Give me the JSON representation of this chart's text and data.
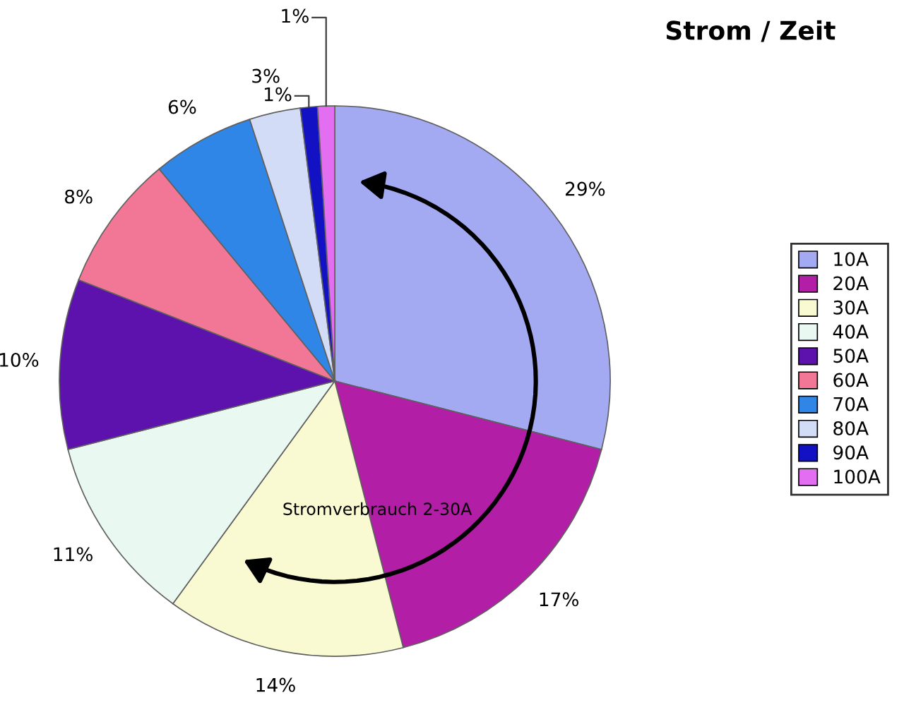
{
  "chart_data": {
    "type": "pie",
    "title": "Strom / Zeit",
    "categories": [
      "10A",
      "20A",
      "30A",
      "40A",
      "50A",
      "60A",
      "70A",
      "80A",
      "90A",
      "100A"
    ],
    "values": [
      29,
      17,
      14,
      11,
      10,
      8,
      6,
      3,
      1,
      1
    ],
    "colors": [
      "#a3aaf2",
      "#b21ea5",
      "#fafad2",
      "#e9f8f1",
      "#5e12ad",
      "#f27796",
      "#2f86e6",
      "#d3dcf7",
      "#1212c4",
      "#e36ef2"
    ],
    "value_labels": [
      "29%",
      "17%",
      "14%",
      "11%",
      "10%",
      "8%",
      "6%",
      "3%",
      "1%",
      "1%"
    ],
    "legend": "right",
    "annotations": [
      "Stromverbrauch 2-30A"
    ]
  }
}
